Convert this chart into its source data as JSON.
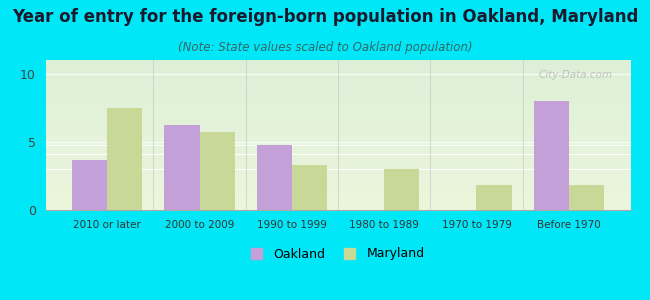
{
  "title": "Year of entry for the foreign-born population in Oakland, Maryland",
  "subtitle": "(Note: State values scaled to Oakland population)",
  "categories": [
    "2010 or later",
    "2000 to 2009",
    "1990 to 1999",
    "1980 to 1989",
    "1970 to 1979",
    "Before 1970"
  ],
  "oakland_values": [
    3.7,
    6.2,
    4.8,
    0,
    0,
    8.0
  ],
  "maryland_values": [
    7.5,
    5.7,
    3.3,
    3.0,
    1.8,
    1.8
  ],
  "oakland_color": "#c4a0d8",
  "maryland_color": "#c8d896",
  "background_color": "#00e8f8",
  "title_color": "#1a1a2e",
  "subtitle_color": "#336666",
  "ylim": [
    0,
    11
  ],
  "yticks": [
    0,
    5,
    10
  ],
  "bar_width": 0.38,
  "watermark": "City-Data.com",
  "title_fontsize": 12,
  "subtitle_fontsize": 8.5,
  "legend_label_oakland": "Oakland",
  "legend_label_maryland": "Maryland"
}
